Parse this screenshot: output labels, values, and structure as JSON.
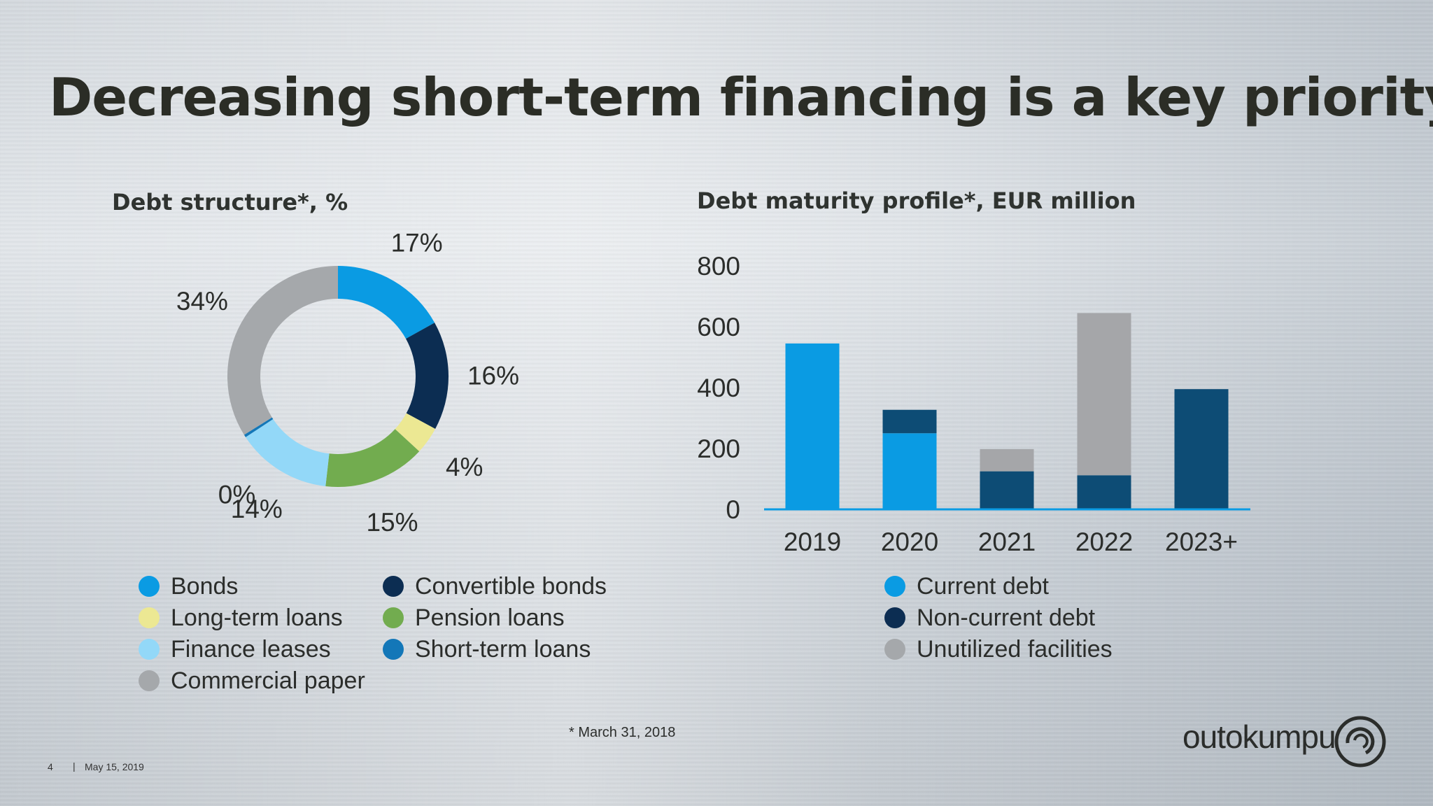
{
  "title": "Decreasing short-term financing is a key priority",
  "footnote": "* March 31, 2018",
  "footer": {
    "page": "4",
    "separator": "|",
    "date": "May 15, 2019"
  },
  "logo": {
    "text": "outokumpu"
  },
  "chart_data": [
    {
      "type": "pie",
      "title": "Debt structure*, %",
      "slices": [
        {
          "name": "Bonds",
          "value": 17,
          "label": "17%",
          "color": "#0a9be3"
        },
        {
          "name": "Convertible bonds",
          "value": 16,
          "label": "16%",
          "color": "#0c2d52"
        },
        {
          "name": "Long-term loans",
          "value": 4,
          "label": "4%",
          "color": "#ece893"
        },
        {
          "name": "Pension loans",
          "value": 15,
          "label": "15%",
          "color": "#72ac4f"
        },
        {
          "name": "Finance leases",
          "value": 14,
          "label": "14%",
          "color": "#93d8f8"
        },
        {
          "name": "Short-term loans",
          "value": 0.4,
          "label": "0%",
          "color": "#1377b8"
        },
        {
          "name": "Commercial paper",
          "value": 34,
          "label": "34%",
          "color": "#a5a8ab"
        }
      ],
      "legend": [
        {
          "name": "Bonds",
          "color": "#0a9be3"
        },
        {
          "name": "Convertible bonds",
          "color": "#0c2d52"
        },
        {
          "name": "Long-term loans",
          "color": "#ece893"
        },
        {
          "name": "Pension loans",
          "color": "#72ac4f"
        },
        {
          "name": "Finance leases",
          "color": "#93d8f8"
        },
        {
          "name": "Short-term loans",
          "color": "#1377b8"
        },
        {
          "name": "Commercial paper",
          "color": "#a5a8ab"
        }
      ]
    },
    {
      "type": "bar",
      "stacked": true,
      "title": "Debt maturity profile*, EUR million",
      "categories": [
        "2019",
        "2020",
        "2021",
        "2022",
        "2023+"
      ],
      "ylim": [
        0,
        800
      ],
      "yticks": [
        "0",
        "200",
        "400",
        "600",
        "800"
      ],
      "grid": false,
      "series": [
        {
          "name": "Current debt",
          "color": "#0a9be3",
          "values": [
            545,
            250,
            0,
            0,
            0
          ]
        },
        {
          "name": "Non-current debt",
          "color": "#0d4c75",
          "values": [
            0,
            77,
            125,
            112,
            395
          ]
        },
        {
          "name": "Unutilized facilities",
          "color": "#a5a6a9",
          "values": [
            0,
            0,
            73,
            533,
            0
          ]
        }
      ],
      "legend": [
        {
          "name": "Current debt",
          "color": "#0a9be3"
        },
        {
          "name": "Non-current debt",
          "color": "#0c2d52"
        },
        {
          "name": "Unutilized facilities",
          "color": "#a5a8ab"
        }
      ]
    }
  ]
}
